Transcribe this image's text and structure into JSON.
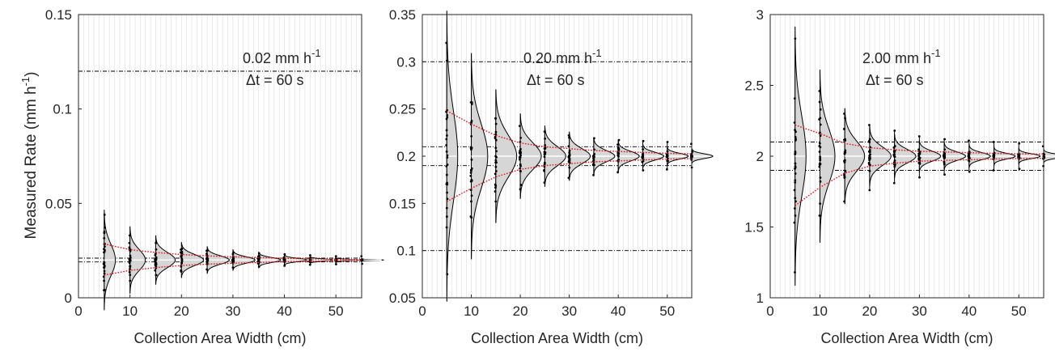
{
  "figure": {
    "ylabel": "Measured Rate (mm h",
    "ylabel_sup": "-1",
    "ylabel_tail": ")"
  },
  "chart_data": [
    {
      "type": "scatter",
      "title": "",
      "xlabel": "Collection Area Width (cm)",
      "ylabel": "Measured Rate (mm h-1)",
      "xlim": [
        0,
        55
      ],
      "ylim": [
        0,
        0.15
      ],
      "xticks": [
        "0",
        "10",
        "20",
        "30",
        "40",
        "50"
      ],
      "yticks": [
        "0",
        "0.05",
        "0.1",
        "0.15"
      ],
      "grid": "vertical minor",
      "annotation": {
        "line1": "0.02 mm h",
        "line1_sup": "-1",
        "line2": "Δt = 60 s"
      },
      "rate": 0.02,
      "reference_lines": [
        0.12,
        0.021,
        0.019
      ],
      "x": [
        5,
        10,
        15,
        20,
        25,
        30,
        35,
        40,
        45,
        50,
        55
      ],
      "distribution_min": [
        0.004,
        0.009,
        0.012,
        0.014,
        0.015,
        0.016,
        0.0165,
        0.017,
        0.0175,
        0.0178,
        0.018
      ],
      "distribution_max": [
        0.044,
        0.033,
        0.029,
        0.026,
        0.025,
        0.024,
        0.0235,
        0.023,
        0.0225,
        0.022,
        0.022
      ],
      "bound_upper": [
        0.0285,
        0.0255,
        0.024,
        0.0229,
        0.0222,
        0.0217,
        0.0213,
        0.0209,
        0.0206,
        0.0204,
        0.0202
      ],
      "bound_lower": [
        0.012,
        0.0145,
        0.016,
        0.0171,
        0.0178,
        0.0183,
        0.0187,
        0.0191,
        0.0194,
        0.0196,
        0.0198
      ]
    },
    {
      "type": "scatter",
      "title": "",
      "xlabel": "Collection Area Width (cm)",
      "ylabel": "",
      "xlim": [
        0,
        55
      ],
      "ylim": [
        0.05,
        0.35
      ],
      "xticks": [
        "0",
        "10",
        "20",
        "30",
        "40",
        "50"
      ],
      "yticks": [
        "0.05",
        "0.1",
        "0.15",
        "0.2",
        "0.25",
        "0.3",
        "0.35"
      ],
      "grid": "vertical minor",
      "annotation": {
        "line1": "0.20 mm h",
        "line1_sup": "-1",
        "line2": "Δt = 60 s"
      },
      "rate": 0.2,
      "reference_lines": [
        0.3,
        0.1,
        0.21,
        0.19
      ],
      "x": [
        5,
        10,
        15,
        20,
        25,
        30,
        35,
        40,
        45,
        50,
        55
      ],
      "distribution_min": [
        0.075,
        0.135,
        0.152,
        0.165,
        0.172,
        0.177,
        0.18,
        0.183,
        0.185,
        0.186,
        0.188
      ],
      "distribution_max": [
        0.32,
        0.257,
        0.24,
        0.232,
        0.226,
        0.222,
        0.219,
        0.217,
        0.216,
        0.215,
        0.213
      ],
      "bound_upper": [
        0.248,
        0.234,
        0.222,
        0.214,
        0.21,
        0.208,
        0.206,
        0.205,
        0.204,
        0.203,
        0.2025
      ],
      "bound_lower": [
        0.152,
        0.166,
        0.178,
        0.186,
        0.19,
        0.192,
        0.194,
        0.195,
        0.196,
        0.197,
        0.1975
      ]
    },
    {
      "type": "scatter",
      "title": "",
      "xlabel": "Collection Area Width (cm)",
      "ylabel": "",
      "xlim": [
        0,
        55
      ],
      "ylim": [
        1,
        3
      ],
      "xticks": [
        "0",
        "10",
        "20",
        "30",
        "40",
        "50"
      ],
      "yticks": [
        "1",
        "1.5",
        "2",
        "2.5",
        "3"
      ],
      "grid": "vertical minor",
      "annotation": {
        "line1": "2.00 mm h",
        "line1_sup": "-1",
        "line2": "Δt = 60 s"
      },
      "rate": 2.0,
      "reference_lines": [
        2.1,
        1.9
      ],
      "x": [
        5,
        10,
        15,
        20,
        25,
        30,
        35,
        40,
        45,
        50,
        55
      ],
      "distribution_min": [
        1.18,
        1.58,
        1.68,
        1.76,
        1.81,
        1.85,
        1.87,
        1.89,
        1.9,
        1.91,
        1.93
      ],
      "distribution_max": [
        2.83,
        2.46,
        2.3,
        2.22,
        2.18,
        2.14,
        2.12,
        2.11,
        2.1,
        2.09,
        2.07
      ],
      "bound_upper": [
        2.22,
        2.16,
        2.09,
        2.06,
        2.045,
        2.035,
        2.03,
        2.025,
        2.02,
        2.017,
        2.015
      ],
      "bound_lower": [
        1.65,
        1.78,
        1.88,
        1.93,
        1.95,
        1.965,
        1.97,
        1.975,
        1.98,
        1.983,
        1.985
      ]
    }
  ]
}
